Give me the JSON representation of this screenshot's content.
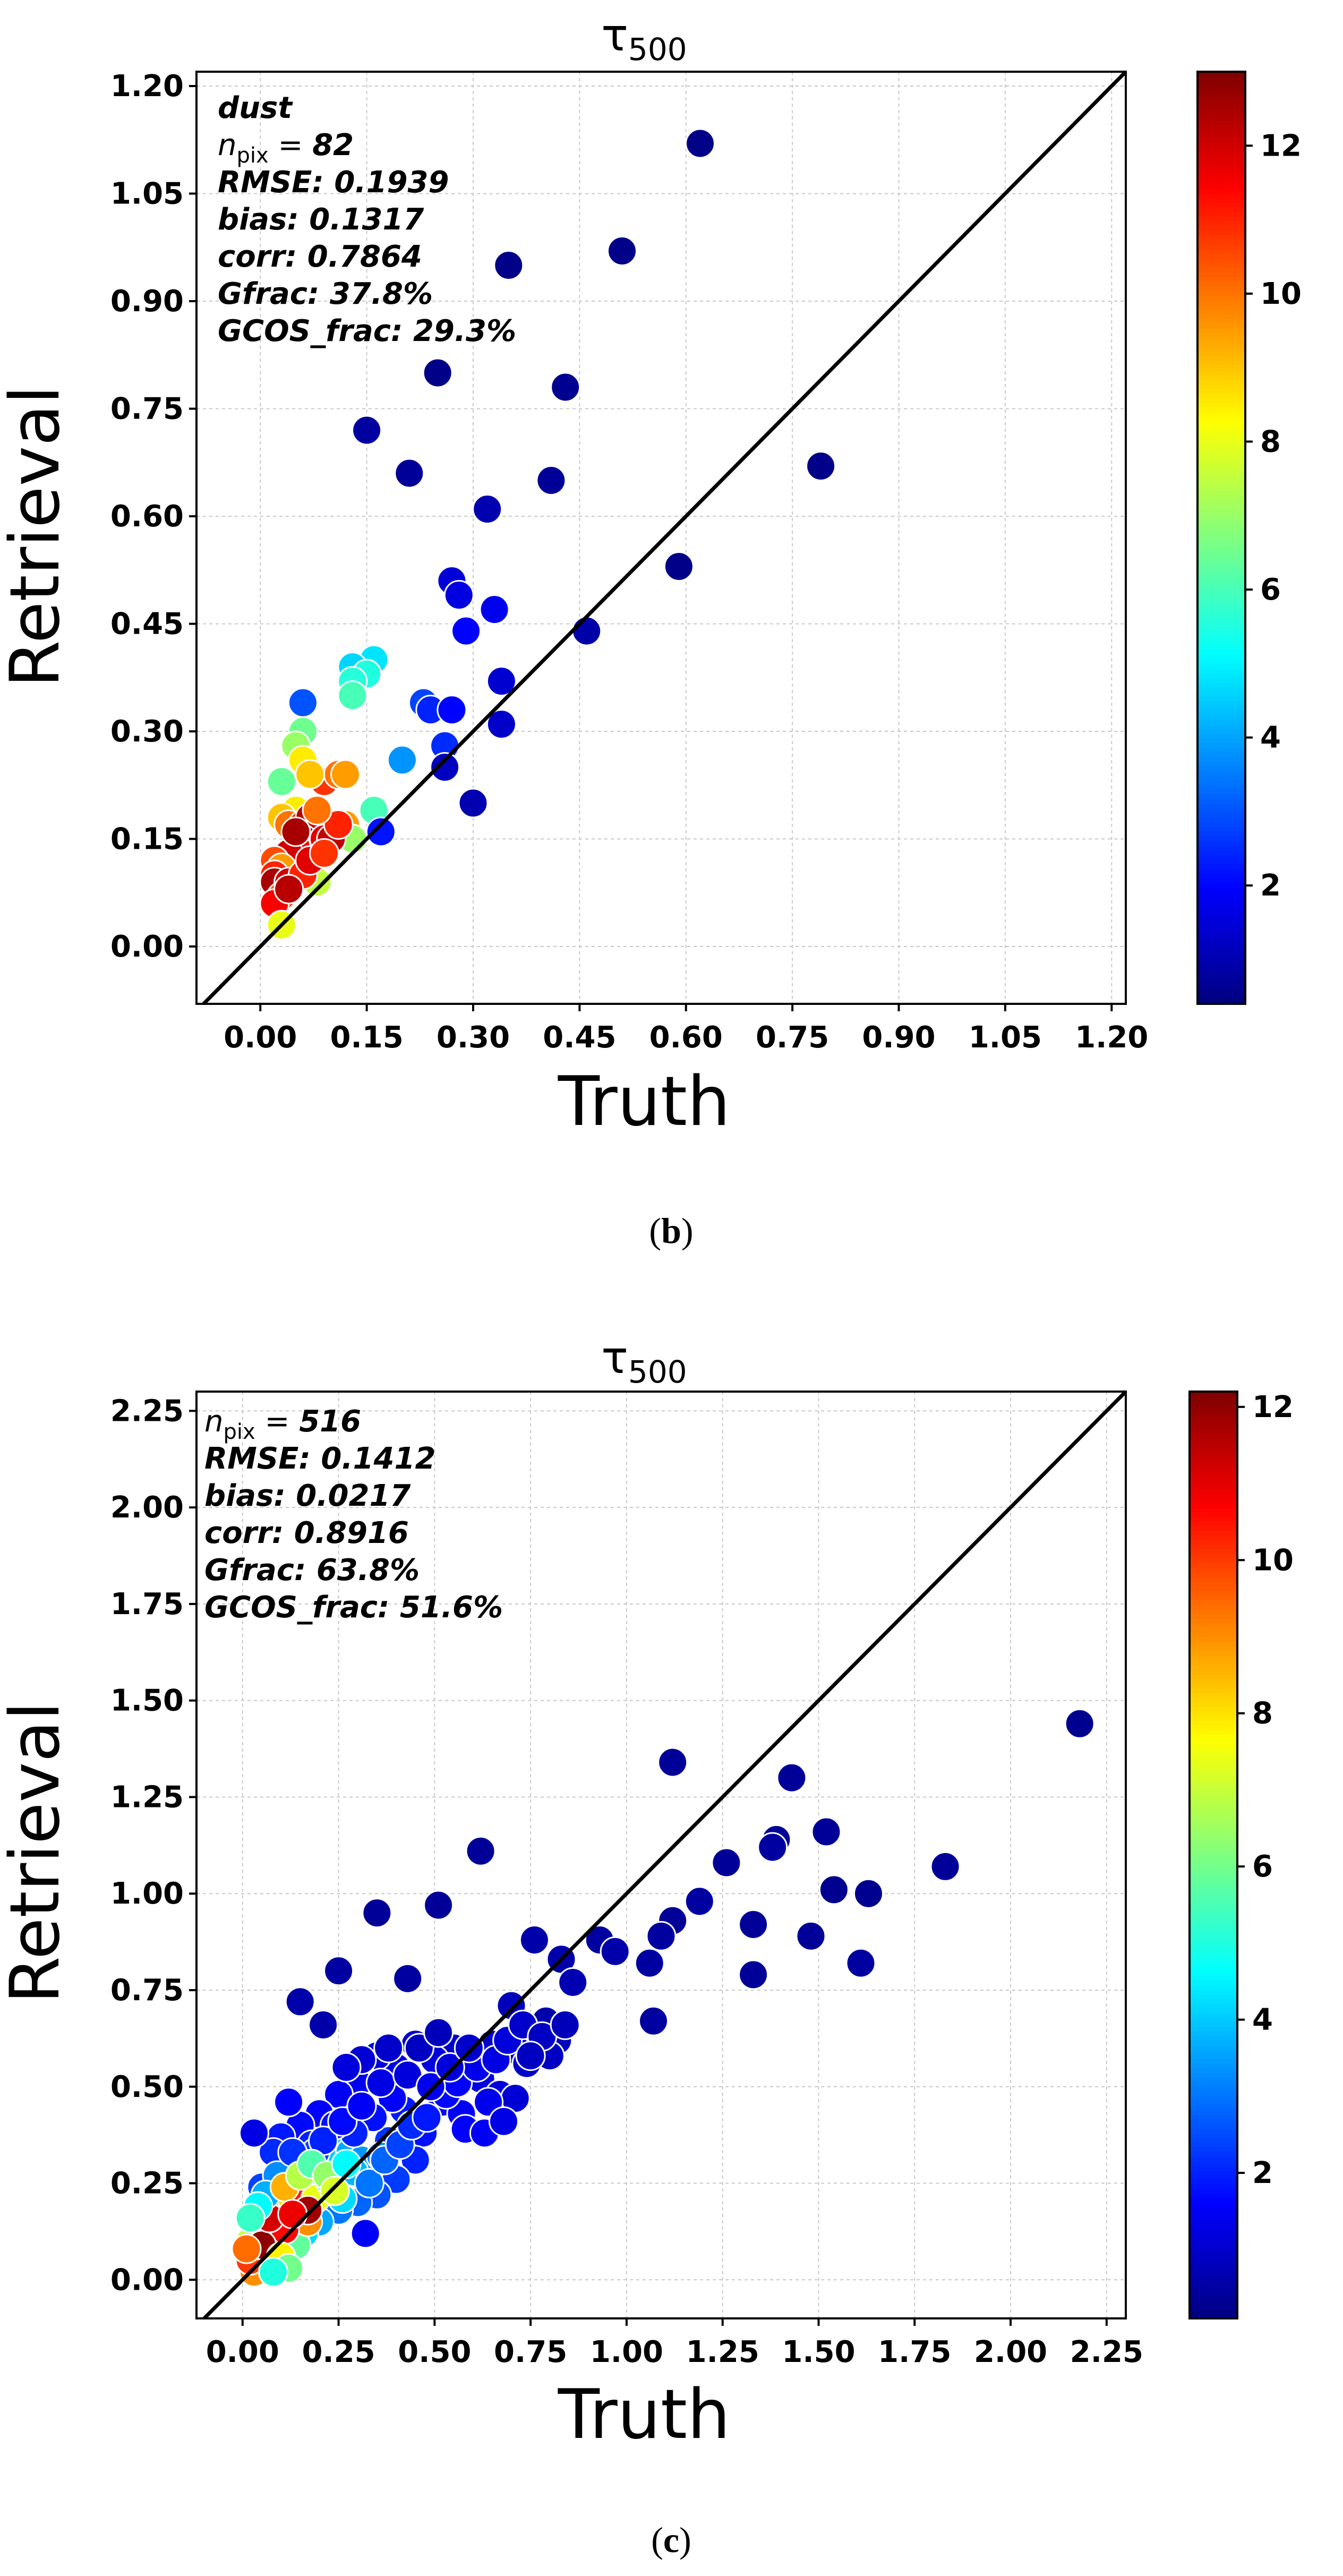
{
  "chart_data": [
    {
      "type": "scatter",
      "panel": "b",
      "caption": "b",
      "title": "τ",
      "title_sub": "500",
      "xlabel": "Truth",
      "ylabel": "Retrieval",
      "xlim": [
        -0.09,
        1.22
      ],
      "ylim": [
        -0.08,
        1.22
      ],
      "xticks": [
        "0.00",
        "0.15",
        "0.30",
        "0.45",
        "0.60",
        "0.75",
        "0.90",
        "1.05",
        "1.20"
      ],
      "yticks": [
        "0.00",
        "0.15",
        "0.30",
        "0.45",
        "0.60",
        "0.75",
        "0.90",
        "1.05",
        "1.20"
      ],
      "grid": true,
      "one_to_one_line": true,
      "stats": {
        "label": "dust",
        "npix_label": "n",
        "npix_sub": "pix",
        "npix_eq": " = ",
        "npix": "82",
        "lines": [
          "RMSE: 0.1939",
          "bias: 0.1317",
          "corr: 0.7864",
          "Gfrac: 37.8%",
          "GCOS_frac: 29.3%"
        ]
      },
      "colorbar": {
        "min": 0.4,
        "max": 13,
        "ticks": [
          "2",
          "4",
          "6",
          "8",
          "10",
          "12"
        ],
        "cmap": "jet"
      },
      "points": [
        [
          0.62,
          1.12,
          0.5
        ],
        [
          0.51,
          0.97,
          0.5
        ],
        [
          0.35,
          0.95,
          0.5
        ],
        [
          0.25,
          0.8,
          0.5
        ],
        [
          0.43,
          0.78,
          0.6
        ],
        [
          0.79,
          0.67,
          0.5
        ],
        [
          0.15,
          0.72,
          0.8
        ],
        [
          0.21,
          0.66,
          0.7
        ],
        [
          0.41,
          0.65,
          0.7
        ],
        [
          0.32,
          0.61,
          1.0
        ],
        [
          0.59,
          0.53,
          0.5
        ],
        [
          0.27,
          0.51,
          1.5
        ],
        [
          0.28,
          0.49,
          1.6
        ],
        [
          0.33,
          0.47,
          1.8
        ],
        [
          0.46,
          0.44,
          0.9
        ],
        [
          0.29,
          0.44,
          2.0
        ],
        [
          0.34,
          0.37,
          1.4
        ],
        [
          0.16,
          0.4,
          4.8
        ],
        [
          0.13,
          0.39,
          4.6
        ],
        [
          0.15,
          0.38,
          5.5
        ],
        [
          0.13,
          0.37,
          5.6
        ],
        [
          0.13,
          0.35,
          6.0
        ],
        [
          0.06,
          0.34,
          3.0
        ],
        [
          0.23,
          0.34,
          2.8
        ],
        [
          0.24,
          0.33,
          2.4
        ],
        [
          0.27,
          0.33,
          2.0
        ],
        [
          0.34,
          0.31,
          1.3
        ],
        [
          0.06,
          0.3,
          6.5
        ],
        [
          0.05,
          0.28,
          7.0
        ],
        [
          0.26,
          0.28,
          2.5
        ],
        [
          0.2,
          0.26,
          3.8
        ],
        [
          0.26,
          0.25,
          1.2
        ],
        [
          0.06,
          0.26,
          8.5
        ],
        [
          0.03,
          0.23,
          6.4
        ],
        [
          0.09,
          0.23,
          10.8
        ],
        [
          0.11,
          0.24,
          10.0
        ],
        [
          0.12,
          0.24,
          9.5
        ],
        [
          0.07,
          0.24,
          9.0
        ],
        [
          0.3,
          0.2,
          1.0
        ],
        [
          0.16,
          0.19,
          6.0
        ],
        [
          0.05,
          0.19,
          8.5
        ],
        [
          0.03,
          0.18,
          9.0
        ],
        [
          0.04,
          0.17,
          10.0
        ],
        [
          0.06,
          0.17,
          11.0
        ],
        [
          0.07,
          0.18,
          12.3
        ],
        [
          0.08,
          0.16,
          12.0
        ],
        [
          0.12,
          0.17,
          9.5
        ],
        [
          0.17,
          0.16,
          2.2
        ],
        [
          0.06,
          0.15,
          12.8
        ],
        [
          0.09,
          0.15,
          11.8
        ],
        [
          0.13,
          0.15,
          7.0
        ],
        [
          0.1,
          0.15,
          12.2
        ],
        [
          0.05,
          0.14,
          11.5
        ],
        [
          0.04,
          0.13,
          12.0
        ],
        [
          0.02,
          0.12,
          10.5
        ],
        [
          0.03,
          0.11,
          9.5
        ],
        [
          0.02,
          0.1,
          11.0
        ],
        [
          0.02,
          0.09,
          12.5
        ],
        [
          0.04,
          0.09,
          12.0
        ],
        [
          0.08,
          0.09,
          7.5
        ],
        [
          0.06,
          0.1,
          11.0
        ],
        [
          0.03,
          0.07,
          10.5
        ],
        [
          0.02,
          0.06,
          11.5
        ],
        [
          0.04,
          0.08,
          12.3
        ],
        [
          0.03,
          0.03,
          8.0
        ],
        [
          0.07,
          0.12,
          11.8
        ],
        [
          0.09,
          0.13,
          10.8
        ],
        [
          0.11,
          0.17,
          11.0
        ],
        [
          0.05,
          0.16,
          12.5
        ],
        [
          0.08,
          0.19,
          10.0
        ]
      ]
    },
    {
      "type": "scatter",
      "panel": "c",
      "caption": "c",
      "title": "τ",
      "title_sub": "500",
      "xlabel": "Truth",
      "ylabel": "Retrieval",
      "xlim": [
        -0.12,
        2.3
      ],
      "ylim": [
        -0.1,
        2.3
      ],
      "xticks": [
        "0.00",
        "0.25",
        "0.50",
        "0.75",
        "1.00",
        "1.25",
        "1.50",
        "1.75",
        "2.00",
        "2.25"
      ],
      "yticks": [
        "0.00",
        "0.25",
        "0.50",
        "0.75",
        "1.00",
        "1.25",
        "1.50",
        "1.75",
        "2.00",
        "2.25"
      ],
      "grid": true,
      "one_to_one_line": true,
      "stats": {
        "label": "",
        "npix_label": "n",
        "npix_sub": "pix",
        "npix_eq": " = ",
        "npix": "516",
        "lines": [
          "RMSE: 0.1412",
          "bias: 0.0217",
          "corr: 0.8916",
          "Gfrac: 63.8%",
          "GCOS_frac: 51.6%"
        ]
      },
      "colorbar": {
        "min": 0.1,
        "max": 12.2,
        "ticks": [
          "2",
          "4",
          "6",
          "8",
          "10",
          "12"
        ],
        "cmap": "jet"
      },
      "points": [
        [
          2.18,
          1.44,
          0.3
        ],
        [
          1.12,
          1.34,
          0.4
        ],
        [
          1.43,
          1.3,
          0.4
        ],
        [
          1.52,
          1.16,
          0.4
        ],
        [
          1.39,
          1.14,
          0.4
        ],
        [
          1.38,
          1.12,
          0.5
        ],
        [
          1.26,
          1.08,
          0.4
        ],
        [
          1.83,
          1.07,
          0.4
        ],
        [
          1.54,
          1.01,
          0.3
        ],
        [
          1.63,
          1.0,
          0.3
        ],
        [
          1.19,
          0.98,
          0.5
        ],
        [
          1.12,
          0.93,
          0.4
        ],
        [
          1.33,
          0.92,
          0.4
        ],
        [
          1.48,
          0.89,
          0.4
        ],
        [
          1.09,
          0.89,
          0.5
        ],
        [
          0.93,
          0.88,
          0.5
        ],
        [
          0.97,
          0.85,
          0.6
        ],
        [
          1.61,
          0.82,
          0.5
        ],
        [
          1.06,
          0.82,
          0.5
        ],
        [
          0.83,
          0.83,
          0.6
        ],
        [
          0.86,
          0.77,
          0.7
        ],
        [
          1.33,
          0.79,
          0.4
        ],
        [
          1.07,
          0.67,
          0.5
        ],
        [
          0.62,
          1.11,
          0.4
        ],
        [
          0.35,
          0.95,
          0.4
        ],
        [
          0.51,
          0.97,
          0.4
        ],
        [
          0.25,
          0.8,
          0.5
        ],
        [
          0.43,
          0.78,
          0.5
        ],
        [
          0.15,
          0.72,
          0.6
        ],
        [
          0.21,
          0.66,
          0.6
        ],
        [
          0.7,
          0.71,
          0.8
        ],
        [
          0.76,
          0.88,
          0.6
        ],
        [
          0.79,
          0.67,
          0.6
        ],
        [
          0.82,
          0.62,
          0.8
        ],
        [
          0.72,
          0.59,
          0.9
        ],
        [
          0.65,
          0.61,
          1.0
        ],
        [
          0.6,
          0.56,
          1.1
        ],
        [
          0.55,
          0.6,
          1.0
        ],
        [
          0.5,
          0.57,
          1.2
        ],
        [
          0.45,
          0.61,
          1.0
        ],
        [
          0.4,
          0.55,
          1.3
        ],
        [
          0.35,
          0.58,
          1.2
        ],
        [
          0.3,
          0.51,
          1.4
        ],
        [
          0.25,
          0.48,
          1.5
        ],
        [
          0.2,
          0.43,
          1.6
        ],
        [
          0.15,
          0.4,
          1.7
        ],
        [
          0.1,
          0.37,
          1.9
        ],
        [
          0.08,
          0.33,
          2.1
        ],
        [
          0.05,
          0.24,
          2.4
        ],
        [
          0.03,
          0.38,
          1.3
        ],
        [
          0.12,
          0.46,
          1.6
        ],
        [
          0.18,
          0.35,
          2.0
        ],
        [
          0.22,
          0.3,
          2.3
        ],
        [
          0.27,
          0.33,
          2.6
        ],
        [
          0.33,
          0.29,
          2.5
        ],
        [
          0.38,
          0.36,
          2.2
        ],
        [
          0.42,
          0.44,
          1.9
        ],
        [
          0.47,
          0.38,
          1.8
        ],
        [
          0.52,
          0.46,
          1.6
        ],
        [
          0.57,
          0.43,
          1.5
        ],
        [
          0.62,
          0.52,
          1.3
        ],
        [
          0.67,
          0.48,
          1.2
        ],
        [
          0.74,
          0.56,
          1.0
        ],
        [
          0.8,
          0.58,
          0.9
        ],
        [
          0.58,
          0.39,
          1.6
        ],
        [
          0.63,
          0.38,
          1.5
        ],
        [
          0.71,
          0.47,
          1.1
        ],
        [
          0.45,
          0.31,
          2.0
        ],
        [
          0.4,
          0.26,
          2.3
        ],
        [
          0.35,
          0.22,
          2.6
        ],
        [
          0.3,
          0.2,
          2.8
        ],
        [
          0.32,
          0.12,
          1.5
        ],
        [
          0.25,
          0.18,
          3.0
        ],
        [
          0.2,
          0.15,
          3.6
        ],
        [
          0.16,
          0.12,
          4.2
        ],
        [
          0.12,
          0.1,
          5.0
        ],
        [
          0.09,
          0.08,
          6.5
        ],
        [
          0.07,
          0.06,
          7.5
        ],
        [
          0.05,
          0.04,
          8.5
        ],
        [
          0.03,
          0.02,
          9.0
        ],
        [
          0.02,
          0.05,
          10.0
        ],
        [
          0.04,
          0.09,
          11.5
        ],
        [
          0.06,
          0.11,
          11.0
        ],
        [
          0.08,
          0.14,
          10.2
        ],
        [
          0.1,
          0.16,
          9.8
        ],
        [
          0.12,
          0.19,
          9.3
        ],
        [
          0.14,
          0.22,
          7.0
        ],
        [
          0.16,
          0.24,
          6.2
        ],
        [
          0.18,
          0.27,
          5.5
        ],
        [
          0.2,
          0.29,
          4.8
        ],
        [
          0.22,
          0.32,
          4.4
        ],
        [
          0.25,
          0.33,
          4.0
        ],
        [
          0.28,
          0.33,
          3.6
        ],
        [
          0.31,
          0.31,
          3.4
        ],
        [
          0.36,
          0.32,
          3.2
        ],
        [
          0.14,
          0.09,
          5.8
        ],
        [
          0.17,
          0.15,
          9.0
        ],
        [
          0.11,
          0.13,
          10.6
        ],
        [
          0.09,
          0.21,
          8.0
        ],
        [
          0.06,
          0.18,
          8.8
        ],
        [
          0.04,
          0.15,
          9.6
        ],
        [
          0.03,
          0.13,
          8.2
        ],
        [
          0.02,
          0.1,
          7.0
        ],
        [
          0.05,
          0.09,
          12.0
        ],
        [
          0.07,
          0.16,
          11.2
        ],
        [
          0.1,
          0.06,
          7.8
        ],
        [
          0.12,
          0.03,
          6.0
        ],
        [
          0.08,
          0.02,
          5.0
        ],
        [
          0.15,
          0.2,
          10.4
        ],
        [
          0.19,
          0.21,
          7.4
        ],
        [
          0.23,
          0.25,
          5.2
        ],
        [
          0.26,
          0.21,
          4.2
        ],
        [
          0.29,
          0.28,
          3.8
        ],
        [
          0.33,
          0.25,
          3.0
        ],
        [
          0.37,
          0.31,
          2.8
        ],
        [
          0.41,
          0.35,
          2.4
        ],
        [
          0.44,
          0.4,
          2.1
        ],
        [
          0.48,
          0.42,
          1.9
        ],
        [
          0.53,
          0.48,
          1.7
        ],
        [
          0.56,
          0.51,
          1.6
        ],
        [
          0.61,
          0.55,
          1.4
        ],
        [
          0.66,
          0.57,
          1.3
        ],
        [
          0.69,
          0.62,
          1.2
        ],
        [
          0.73,
          0.66,
          1.0
        ],
        [
          0.78,
          0.63,
          0.9
        ],
        [
          0.39,
          0.47,
          1.6
        ],
        [
          0.34,
          0.42,
          1.8
        ],
        [
          0.29,
          0.38,
          2.0
        ],
        [
          0.24,
          0.4,
          1.8
        ],
        [
          0.19,
          0.33,
          2.4
        ],
        [
          0.13,
          0.28,
          2.9
        ],
        [
          0.09,
          0.27,
          3.3
        ],
        [
          0.06,
          0.22,
          3.7
        ],
        [
          0.04,
          0.19,
          4.6
        ],
        [
          0.02,
          0.16,
          5.3
        ],
        [
          0.01,
          0.08,
          9.4
        ],
        [
          0.13,
          0.33,
          2.2
        ],
        [
          0.21,
          0.36,
          2.0
        ],
        [
          0.26,
          0.41,
          1.7
        ],
        [
          0.31,
          0.45,
          1.5
        ],
        [
          0.36,
          0.51,
          1.3
        ],
        [
          0.43,
          0.53,
          1.2
        ],
        [
          0.49,
          0.5,
          1.4
        ],
        [
          0.54,
          0.55,
          1.2
        ],
        [
          0.59,
          0.6,
          1.0
        ],
        [
          0.46,
          0.6,
          0.9
        ],
        [
          0.38,
          0.6,
          1.0
        ],
        [
          0.31,
          0.57,
          1.1
        ],
        [
          0.27,
          0.55,
          1.2
        ],
        [
          0.51,
          0.64,
          0.8
        ],
        [
          0.64,
          0.46,
          1.4
        ],
        [
          0.68,
          0.41,
          1.3
        ],
        [
          0.75,
          0.58,
          0.9
        ],
        [
          0.84,
          0.66,
          0.8
        ],
        [
          0.11,
          0.24,
          8.6
        ],
        [
          0.15,
          0.27,
          6.8
        ],
        [
          0.18,
          0.3,
          5.6
        ],
        [
          0.22,
          0.27,
          6.4
        ],
        [
          0.24,
          0.23,
          7.2
        ],
        [
          0.27,
          0.3,
          4.6
        ],
        [
          0.17,
          0.18,
          11.8
        ],
        [
          0.13,
          0.17,
          10.9
        ]
      ]
    }
  ]
}
